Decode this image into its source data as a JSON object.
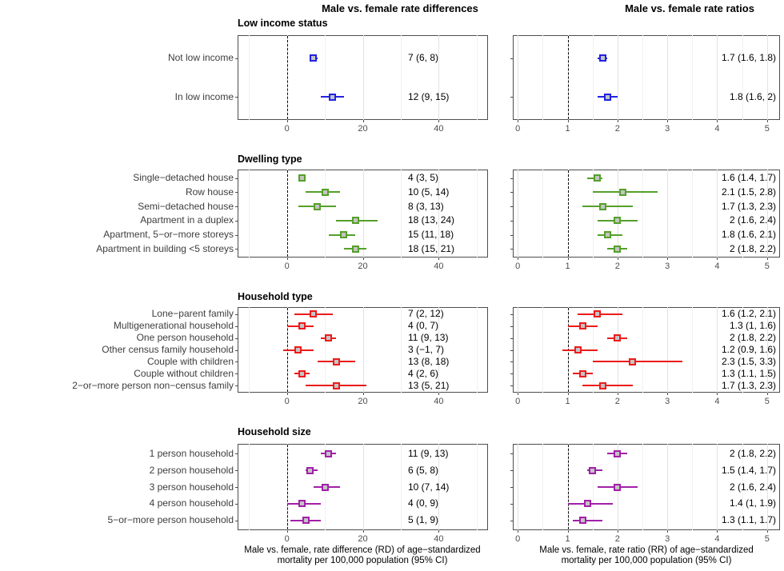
{
  "headers": {
    "left": "Male vs. female rate differences",
    "right": "Male vs. female rate ratios"
  },
  "captions": {
    "left_line1": "Male vs. female, rate difference (RD) of age−standardized",
    "left_line2": "mortality per 100,000 population (95% CI)",
    "right_line1": "Male vs. female, rate ratio (RR) of age−standardized",
    "right_line2": "mortality per 100,000 population (95% CI)"
  },
  "colors": {
    "low_income_status": "#2222e2",
    "dwelling_type": "#55a02a",
    "household_type": "#ec1b1b",
    "household_size": "#a120a8",
    "marker_fill": "#c4c4c4",
    "reference_line": "#000000",
    "grid_major": "#e3e3e3",
    "grid_minor": "#f1f1f1",
    "panel_border": "#4d4d4d",
    "category_text": "#3d3d3d",
    "axis_text": "#4d4d4d"
  },
  "chart_data": {
    "type": "forest",
    "axis_difference": {
      "ticks": [
        0,
        20,
        40
      ],
      "minor_ticks": [
        -10,
        10,
        30,
        50
      ],
      "domain": [
        -13,
        53
      ],
      "reference_line": 0,
      "xlabel": "Male vs. female, rate difference (RD) of age−standardized mortality per 100,000 population (95% CI)"
    },
    "axis_ratio": {
      "ticks": [
        0,
        1,
        2,
        3,
        4,
        5
      ],
      "minor_ticks": [
        0.5,
        1.5,
        2.5,
        3.5,
        4.5
      ],
      "domain": [
        -0.1,
        5.26
      ],
      "reference_line": 1,
      "xlabel": "Male vs. female, rate ratio (RR) of age−standardized mortality per 100,000 population (95% CI)"
    },
    "groups": [
      {
        "title": "Low income status",
        "color": "#2222e2",
        "categories": [
          "Not low income",
          "In low income"
        ],
        "rate_difference": {
          "estimates": [
            7,
            12
          ],
          "ci_low": [
            6,
            9
          ],
          "ci_high": [
            8,
            15
          ],
          "labels": [
            "7 (6, 8)",
            "12 (9, 15)"
          ]
        },
        "rate_ratio": {
          "estimates": [
            1.7,
            1.8
          ],
          "ci_low": [
            1.6,
            1.6
          ],
          "ci_high": [
            1.8,
            2
          ],
          "labels": [
            "1.7 (1.6, 1.8)",
            "1.8 (1.6, 2)"
          ]
        }
      },
      {
        "title": "Dwelling type",
        "color": "#55a02a",
        "categories": [
          "Single−detached house",
          "Row house",
          "Semi−detached house",
          "Apartment in a duplex",
          "Apartment, 5−or−more storeys",
          "Apartment in building <5 storeys"
        ],
        "rate_difference": {
          "estimates": [
            4,
            10,
            8,
            18,
            15,
            18
          ],
          "ci_low": [
            3,
            5,
            3,
            13,
            11,
            15
          ],
          "ci_high": [
            5,
            14,
            13,
            24,
            18,
            21
          ],
          "labels": [
            "4 (3, 5)",
            "10 (5, 14)",
            "8 (3, 13)",
            "18 (13, 24)",
            "15 (11, 18)",
            "18 (15, 21)"
          ]
        },
        "rate_ratio": {
          "estimates": [
            1.6,
            2.1,
            1.7,
            2,
            1.8,
            2
          ],
          "ci_low": [
            1.4,
            1.5,
            1.3,
            1.6,
            1.6,
            1.8
          ],
          "ci_high": [
            1.7,
            2.8,
            2.3,
            2.4,
            2.1,
            2.2
          ],
          "labels": [
            "1.6 (1.4, 1.7)",
            "2.1 (1.5, 2.8)",
            "1.7 (1.3, 2.3)",
            "2 (1.6, 2.4)",
            "1.8 (1.6, 2.1)",
            "2 (1.8, 2.2)"
          ]
        }
      },
      {
        "title": "Household type",
        "color": "#ec1b1b",
        "categories": [
          "Lone−parent family",
          "Multigenerational household",
          "One person household",
          "Other census family household",
          "Couple with children",
          "Couple without children",
          "2−or−more person non−census family"
        ],
        "rate_difference": {
          "estimates": [
            7,
            4,
            11,
            3,
            13,
            4,
            13
          ],
          "ci_low": [
            2,
            0,
            9,
            -1,
            8,
            2,
            5
          ],
          "ci_high": [
            12,
            7,
            13,
            7,
            18,
            6,
            21
          ],
          "labels": [
            "7 (2, 12)",
            "4 (0, 7)",
            "11 (9, 13)",
            "3 (−1, 7)",
            "13 (8, 18)",
            "4 (2, 6)",
            "13 (5, 21)"
          ]
        },
        "rate_ratio": {
          "estimates": [
            1.6,
            1.3,
            2,
            1.2,
            2.3,
            1.3,
            1.7
          ],
          "ci_low": [
            1.2,
            1,
            1.8,
            0.9,
            1.5,
            1.1,
            1.3
          ],
          "ci_high": [
            2.1,
            1.6,
            2.2,
            1.6,
            3.3,
            1.5,
            2.3
          ],
          "labels": [
            "1.6 (1.2, 2.1)",
            "1.3 (1, 1.6)",
            "2 (1.8, 2.2)",
            "1.2 (0.9, 1.6)",
            "2.3 (1.5, 3.3)",
            "1.3 (1.1, 1.5)",
            "1.7 (1.3, 2.3)"
          ]
        }
      },
      {
        "title": "Household size",
        "color": "#a120a8",
        "categories": [
          "1 person household",
          "2 person household",
          "3 person household",
          "4 person household",
          "5−or−more person household"
        ],
        "rate_difference": {
          "estimates": [
            11,
            6,
            10,
            4,
            5
          ],
          "ci_low": [
            9,
            5,
            7,
            0,
            1
          ],
          "ci_high": [
            13,
            8,
            14,
            9,
            9
          ],
          "labels": [
            "11 (9, 13)",
            "6 (5, 8)",
            "10 (7, 14)",
            "4 (0, 9)",
            "5 (1, 9)"
          ]
        },
        "rate_ratio": {
          "estimates": [
            2,
            1.5,
            2,
            1.4,
            1.3
          ],
          "ci_low": [
            1.8,
            1.4,
            1.6,
            1,
            1.1
          ],
          "ci_high": [
            2.2,
            1.7,
            2.4,
            1.9,
            1.7
          ],
          "labels": [
            "2 (1.8, 2.2)",
            "1.5 (1.4, 1.7)",
            "2 (1.6, 2.4)",
            "1.4 (1, 1.9)",
            "1.3 (1.1, 1.7)"
          ]
        }
      }
    ]
  }
}
